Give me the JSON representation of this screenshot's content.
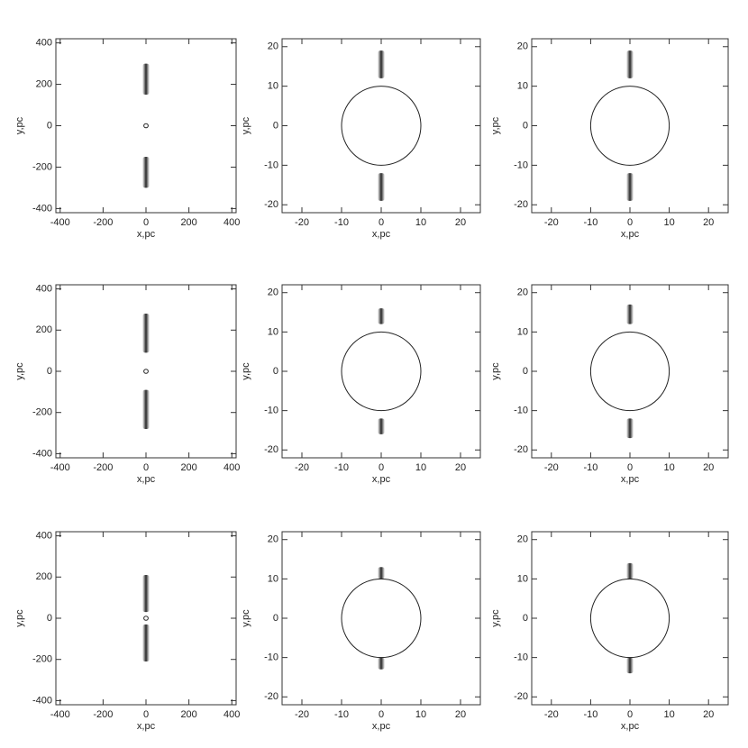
{
  "chart_data": [
    {
      "type": "image",
      "xlabel": "x,pc",
      "ylabel": "y,pc",
      "xlim": [
        -420,
        420
      ],
      "ylim": [
        -420,
        420
      ],
      "xticks": [
        -400,
        -200,
        0,
        200,
        400
      ],
      "yticks": [
        -400,
        -200,
        0,
        200,
        400
      ],
      "circle_radius": 10,
      "jets": [
        [
          150,
          300
        ],
        [
          -150,
          -300
        ]
      ]
    },
    {
      "type": "image",
      "xlabel": "x,pc",
      "ylabel": "y,pc",
      "xlim": [
        -25,
        25
      ],
      "ylim": [
        -22,
        22
      ],
      "xticks": [
        -20,
        -10,
        0,
        10,
        20
      ],
      "yticks": [
        -20,
        -10,
        0,
        10,
        20
      ],
      "circle_radius": 10,
      "jets": [
        [
          12,
          19
        ],
        [
          -12,
          -19
        ]
      ]
    },
    {
      "type": "image",
      "xlabel": "x,pc",
      "ylabel": "y,pc",
      "xlim": [
        -25,
        25
      ],
      "ylim": [
        -22,
        22
      ],
      "xticks": [
        -20,
        -10,
        0,
        10,
        20
      ],
      "yticks": [
        -20,
        -10,
        0,
        10,
        20
      ],
      "circle_radius": 10,
      "jets": [
        [
          12,
          19
        ],
        [
          -12,
          -19
        ]
      ]
    },
    {
      "type": "image",
      "xlabel": "x,pc",
      "ylabel": "y,pc",
      "xlim": [
        -420,
        420
      ],
      "ylim": [
        -420,
        420
      ],
      "xticks": [
        -400,
        -200,
        0,
        200,
        400
      ],
      "yticks": [
        -400,
        -200,
        0,
        200,
        400
      ],
      "circle_radius": 10,
      "jets": [
        [
          90,
          280
        ],
        [
          -90,
          -280
        ]
      ]
    },
    {
      "type": "image",
      "xlabel": "x,pc",
      "ylabel": "y,pc",
      "xlim": [
        -25,
        25
      ],
      "ylim": [
        -22,
        22
      ],
      "xticks": [
        -20,
        -10,
        0,
        10,
        20
      ],
      "yticks": [
        -20,
        -10,
        0,
        10,
        20
      ],
      "circle_radius": 10,
      "jets": [
        [
          12,
          16
        ],
        [
          -12,
          -16
        ]
      ]
    },
    {
      "type": "image",
      "xlabel": "x,pc",
      "ylabel": "y,pc",
      "xlim": [
        -25,
        25
      ],
      "ylim": [
        -22,
        22
      ],
      "xticks": [
        -20,
        -10,
        0,
        10,
        20
      ],
      "yticks": [
        -20,
        -10,
        0,
        10,
        20
      ],
      "circle_radius": 10,
      "jets": [
        [
          12,
          17
        ],
        [
          -12,
          -17
        ]
      ]
    },
    {
      "type": "image",
      "xlabel": "x,pc",
      "ylabel": "y,pc",
      "xlim": [
        -420,
        420
      ],
      "ylim": [
        -420,
        420
      ],
      "xticks": [
        -400,
        -200,
        0,
        200,
        400
      ],
      "yticks": [
        -400,
        -200,
        0,
        200,
        400
      ],
      "circle_radius": 10,
      "jets": [
        [
          30,
          210
        ],
        [
          -30,
          -210
        ]
      ]
    },
    {
      "type": "image",
      "xlabel": "x,pc",
      "ylabel": "y,pc",
      "xlim": [
        -25,
        25
      ],
      "ylim": [
        -22,
        22
      ],
      "xticks": [
        -20,
        -10,
        0,
        10,
        20
      ],
      "yticks": [
        -20,
        -10,
        0,
        10,
        20
      ],
      "circle_radius": 10,
      "jets": [
        [
          10,
          13
        ],
        [
          -10,
          -13
        ]
      ]
    },
    {
      "type": "image",
      "xlabel": "x,pc",
      "ylabel": "y,pc",
      "xlim": [
        -25,
        25
      ],
      "ylim": [
        -22,
        22
      ],
      "xticks": [
        -20,
        -10,
        0,
        10,
        20
      ],
      "yticks": [
        -20,
        -10,
        0,
        10,
        20
      ],
      "circle_radius": 10,
      "jets": [
        [
          10,
          14
        ],
        [
          -10,
          -14
        ]
      ]
    }
  ]
}
